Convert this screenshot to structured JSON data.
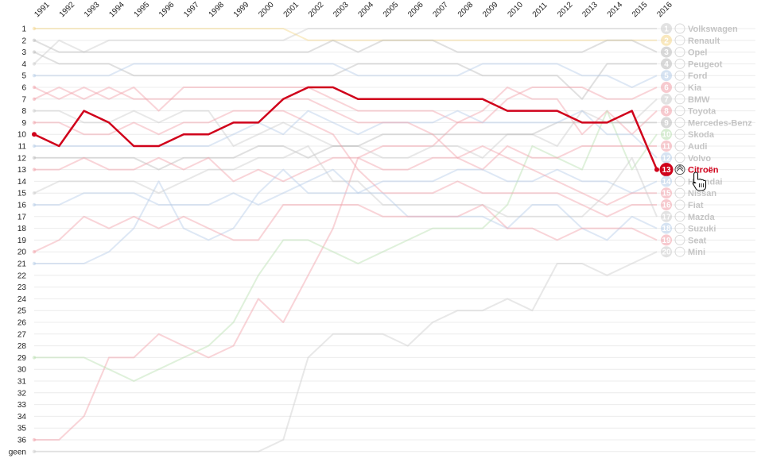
{
  "chart_data": {
    "type": "line",
    "x": [
      "1991",
      "1992",
      "1993",
      "1994",
      "1995",
      "1996",
      "1997",
      "1998",
      "1999",
      "2000",
      "2001",
      "2002",
      "2003",
      "2004",
      "2005",
      "2006",
      "2007",
      "2008",
      "2009",
      "2010",
      "2011",
      "2012",
      "2013",
      "2014",
      "2015",
      "2016"
    ],
    "y_tick_labels": [
      "1",
      "2",
      "3",
      "4",
      "5",
      "6",
      "7",
      "8",
      "9",
      "10",
      "11",
      "12",
      "13",
      "14",
      "15",
      "16",
      "17",
      "18",
      "19",
      "20",
      "21",
      "22",
      "23",
      "24",
      "25",
      "26",
      "27",
      "28",
      "29",
      "30",
      "31",
      "32",
      "33",
      "34",
      "35",
      "36",
      "geen"
    ],
    "y_reversed": true,
    "grid": true,
    "highlighted_series": "Citroën",
    "colors": {
      "highlight": "#d0021b",
      "muted": "#cfcfcf",
      "badge_text": "#ffffff"
    },
    "legend_position": "right",
    "legend": [
      {
        "rank": "1",
        "name": "Volkswagen",
        "icon": "volkswagen-logo",
        "color": "#cccccc"
      },
      {
        "rank": "2",
        "name": "Renault",
        "icon": "renault-logo",
        "color": "#f5d68a"
      },
      {
        "rank": "3",
        "name": "Opel",
        "icon": "opel-logo",
        "color": "#bbbbbb"
      },
      {
        "rank": "4",
        "name": "Peugeot",
        "icon": "peugeot-logo",
        "color": "#bbbbbb"
      },
      {
        "rank": "5",
        "name": "Ford",
        "icon": "ford-logo",
        "color": "#b5cde8"
      },
      {
        "rank": "6",
        "name": "Kia",
        "icon": "kia-logo",
        "color": "#f2a0a8"
      },
      {
        "rank": "7",
        "name": "BMW",
        "icon": "bmw-logo",
        "color": "#cccccc"
      },
      {
        "rank": "8",
        "name": "Toyota",
        "icon": "toyota-logo",
        "color": "#f2a0a8"
      },
      {
        "rank": "9",
        "name": "Mercedes-Benz",
        "icon": "mercedes-logo",
        "color": "#bbbbbb"
      },
      {
        "rank": "10",
        "name": "Skoda",
        "icon": "skoda-logo",
        "color": "#b9e0b0"
      },
      {
        "rank": "11",
        "name": "Audi",
        "icon": "audi-logo",
        "color": "#f2a0a8"
      },
      {
        "rank": "12",
        "name": "Volvo",
        "icon": "volvo-logo",
        "color": "#b5cde8"
      },
      {
        "rank": "13",
        "name": "Citroën",
        "icon": "citroen-logo",
        "color": "#d0021b"
      },
      {
        "rank": "14",
        "name": "Hyundai",
        "icon": "hyundai-logo",
        "color": "#b5cde8"
      },
      {
        "rank": "15",
        "name": "Nissan",
        "icon": "nissan-logo",
        "color": "#f2a0a8"
      },
      {
        "rank": "16",
        "name": "Fiat",
        "icon": "fiat-logo",
        "color": "#f2a0a8"
      },
      {
        "rank": "17",
        "name": "Mazda",
        "icon": "mazda-logo",
        "color": "#cccccc"
      },
      {
        "rank": "18",
        "name": "Suzuki",
        "icon": "suzuki-logo",
        "color": "#b5cde8"
      },
      {
        "rank": "19",
        "name": "Seat",
        "icon": "seat-logo",
        "color": "#f2a0a8"
      },
      {
        "rank": "20",
        "name": "Mini",
        "icon": "mini-logo",
        "color": "#cccccc"
      }
    ],
    "series": [
      {
        "name": "Citroën",
        "color": "#d0021b",
        "highlight": true,
        "values": [
          10,
          11,
          8,
          9,
          11,
          11,
          10,
          10,
          9,
          9,
          7,
          6,
          6,
          7,
          7,
          7,
          7,
          7,
          7,
          8,
          8,
          8,
          9,
          9,
          8,
          13
        ]
      },
      {
        "name": "Volkswagen",
        "color": "#cccccc",
        "values": [
          4,
          2,
          3,
          2,
          2,
          2,
          2,
          2,
          2,
          2,
          2,
          1,
          1,
          1,
          1,
          1,
          1,
          1,
          1,
          1,
          1,
          1,
          1,
          1,
          1,
          1
        ]
      },
      {
        "name": "Renault",
        "color": "#f5d68a",
        "values": [
          1,
          1,
          1,
          1,
          1,
          1,
          1,
          1,
          1,
          1,
          1,
          2,
          2,
          2,
          2,
          2,
          2,
          2,
          2,
          2,
          2,
          2,
          2,
          2,
          2,
          2
        ]
      },
      {
        "name": "Opel",
        "color": "#bbbbbb",
        "values": [
          2,
          3,
          3,
          3,
          3,
          3,
          3,
          3,
          3,
          3,
          3,
          3,
          2,
          3,
          2,
          2,
          2,
          3,
          3,
          3,
          3,
          3,
          3,
          2,
          2,
          3
        ]
      },
      {
        "name": "Peugeot",
        "color": "#bbbbbb",
        "values": [
          3,
          4,
          4,
          4,
          5,
          5,
          5,
          5,
          5,
          5,
          5,
          5,
          5,
          4,
          4,
          4,
          4,
          4,
          5,
          5,
          5,
          5,
          7,
          4,
          4,
          4
        ]
      },
      {
        "name": "Ford",
        "color": "#b5cde8",
        "values": [
          5,
          5,
          5,
          5,
          4,
          4,
          4,
          4,
          4,
          4,
          4,
          4,
          4,
          5,
          5,
          5,
          5,
          5,
          4,
          4,
          4,
          4,
          5,
          5,
          6,
          5
        ]
      },
      {
        "name": "Kia",
        "color": "#f2a0a8",
        "values": [
          36,
          36,
          34,
          29,
          29,
          27,
          28,
          29,
          28,
          24,
          26,
          22,
          18,
          12,
          11,
          11,
          11,
          9,
          9,
          7,
          6,
          6,
          6,
          7,
          7,
          6
        ]
      },
      {
        "name": "BMW",
        "color": "#cccccc",
        "values": [
          8,
          8,
          9,
          9,
          8,
          9,
          8,
          8,
          11,
          10,
          9,
          10,
          11,
          11,
          12,
          12,
          11,
          11,
          12,
          10,
          10,
          11,
          8,
          9,
          9,
          7
        ]
      },
      {
        "name": "Toyota",
        "color": "#f2a0a8",
        "values": [
          6,
          7,
          6,
          7,
          6,
          8,
          6,
          6,
          6,
          6,
          6,
          6,
          7,
          8,
          8,
          8,
          8,
          9,
          8,
          6,
          7,
          7,
          10,
          8,
          10,
          8
        ]
      },
      {
        "name": "Mercedes-Benz",
        "color": "#bbbbbb",
        "values": [
          12,
          12,
          12,
          12,
          12,
          13,
          12,
          12,
          12,
          11,
          11,
          12,
          11,
          11,
          10,
          10,
          10,
          10,
          10,
          10,
          10,
          9,
          9,
          9,
          9,
          9
        ]
      },
      {
        "name": "Skoda",
        "color": "#b9e0b0",
        "values": [
          29,
          29,
          29,
          30,
          31,
          30,
          29,
          28,
          26,
          22,
          19,
          19,
          20,
          21,
          20,
          19,
          18,
          18,
          18,
          16,
          11,
          12,
          13,
          8,
          13,
          10
        ]
      },
      {
        "name": "Audi",
        "color": "#f2a0a8",
        "values": [
          13,
          13,
          12,
          13,
          13,
          12,
          13,
          12,
          14,
          13,
          14,
          13,
          12,
          12,
          13,
          13,
          12,
          12,
          13,
          11,
          12,
          12,
          11,
          11,
          11,
          11
        ]
      },
      {
        "name": "Volvo",
        "color": "#b5cde8",
        "values": [
          11,
          11,
          11,
          11,
          11,
          11,
          11,
          11,
          10,
          9,
          10,
          8,
          9,
          10,
          9,
          9,
          9,
          8,
          9,
          9,
          9,
          9,
          8,
          10,
          10,
          12
        ]
      },
      {
        "name": "Hyundai",
        "color": "#b5cde8",
        "values": [
          21,
          21,
          21,
          20,
          18,
          14,
          18,
          19,
          18,
          15,
          13,
          15,
          15,
          15,
          14,
          14,
          14,
          13,
          13,
          14,
          14,
          13,
          14,
          14,
          15,
          14
        ]
      },
      {
        "name": "Nissan",
        "color": "#f2a0a8",
        "values": [
          7,
          6,
          7,
          6,
          7,
          7,
          7,
          7,
          7,
          7,
          7,
          7,
          8,
          9,
          9,
          9,
          10,
          12,
          11,
          12,
          13,
          14,
          15,
          16,
          15,
          15
        ]
      },
      {
        "name": "Fiat",
        "color": "#f2a0a8",
        "values": [
          9,
          9,
          10,
          10,
          9,
          10,
          9,
          9,
          8,
          8,
          8,
          9,
          10,
          13,
          15,
          15,
          15,
          14,
          15,
          15,
          15,
          15,
          16,
          17,
          16,
          16
        ]
      },
      {
        "name": "Mazda",
        "color": "#cccccc",
        "values": [
          15,
          14,
          14,
          14,
          14,
          15,
          14,
          13,
          13,
          12,
          12,
          11,
          14,
          14,
          16,
          16,
          16,
          16,
          16,
          17,
          17,
          17,
          17,
          15,
          12,
          17
        ]
      },
      {
        "name": "Suzuki",
        "color": "#b5cde8",
        "values": [
          16,
          16,
          15,
          15,
          15,
          16,
          16,
          16,
          15,
          16,
          15,
          14,
          13,
          15,
          15,
          17,
          17,
          17,
          17,
          18,
          16,
          16,
          18,
          19,
          17,
          18
        ]
      },
      {
        "name": "Seat",
        "color": "#f2a0a8",
        "values": [
          20,
          19,
          17,
          18,
          17,
          18,
          17,
          18,
          19,
          19,
          16,
          16,
          16,
          16,
          17,
          17,
          17,
          17,
          16,
          18,
          18,
          19,
          18,
          18,
          18,
          19
        ]
      },
      {
        "name": "Mini",
        "color": "#cccccc",
        "values": [
          37,
          37,
          37,
          37,
          37,
          37,
          37,
          37,
          37,
          37,
          36,
          29,
          27,
          27,
          27,
          28,
          26,
          25,
          25,
          24,
          25,
          21,
          21,
          22,
          21,
          20
        ]
      }
    ]
  }
}
